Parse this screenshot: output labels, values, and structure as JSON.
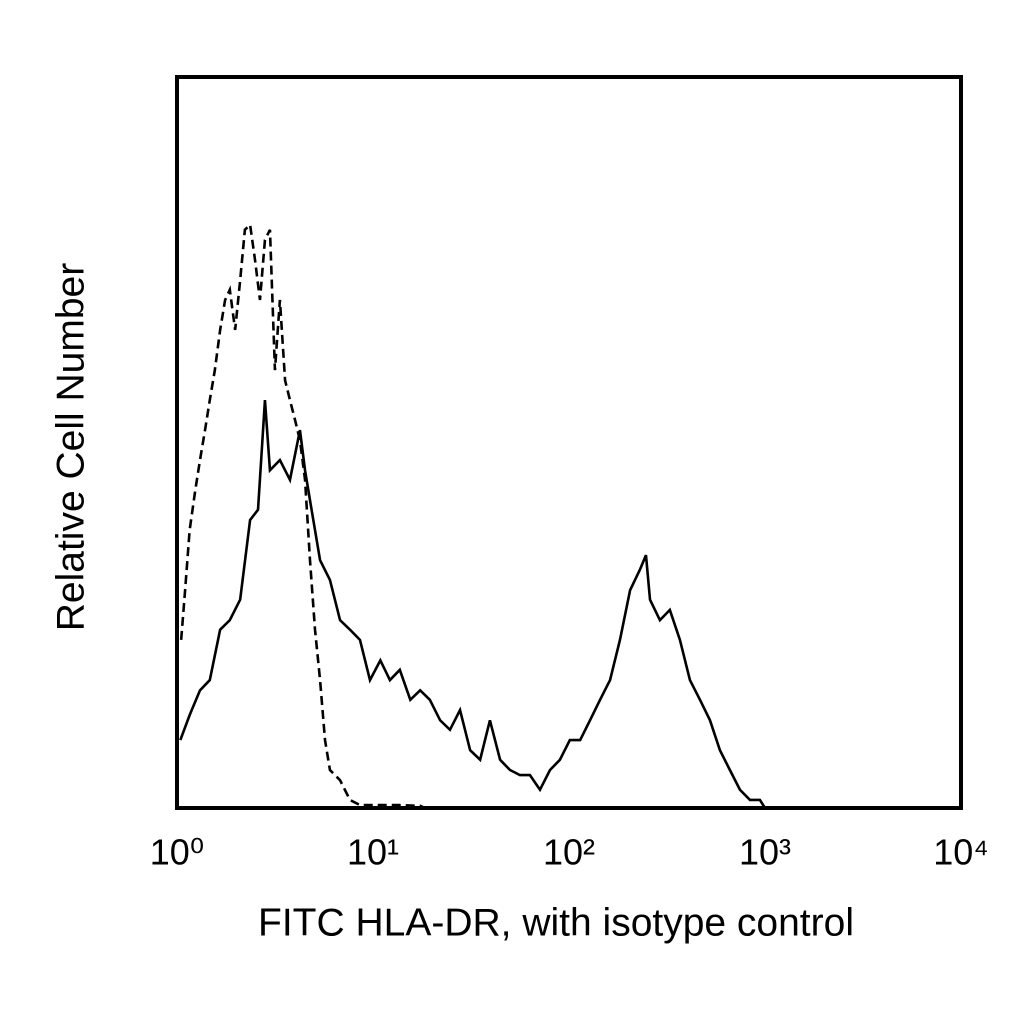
{
  "chart_data": {
    "type": "line",
    "xlabel": "FITC HLA-DR, with isotype control",
    "ylabel": "Relative Cell Number",
    "xscale": "log",
    "xlim": [
      1,
      10000
    ],
    "xticks": [
      {
        "value": 1,
        "label": "10⁰"
      },
      {
        "value": 10,
        "label": "10¹"
      },
      {
        "value": 100,
        "label": "10²"
      },
      {
        "value": 1000,
        "label": "10³"
      },
      {
        "value": 10000,
        "label": "10⁴"
      }
    ],
    "ylim": [
      0,
      100
    ],
    "grid": false,
    "series": [
      {
        "color": "#000000",
        "dash": false,
        "x": [
          1.04,
          1.16,
          1.31,
          1.47,
          1.66,
          1.86,
          2.1,
          2.36,
          2.59,
          2.81,
          2.98,
          3.35,
          3.77,
          4.24,
          4.5,
          4.77,
          5.37,
          6.03,
          6.79,
          7.63,
          8.58,
          9.65,
          10.9,
          12.2,
          13.7,
          15.5,
          17.4,
          19.5,
          22.0,
          24.7,
          27.8,
          31.3,
          35.2,
          39.5,
          44.5,
          50.0,
          56.2,
          63.2,
          71.1,
          80.0,
          89.9,
          101,
          114,
          128,
          144,
          162,
          182,
          205,
          230,
          247,
          259,
          291,
          327,
          368,
          414,
          466,
          524,
          589,
          662,
          745,
          838,
          942,
          1000
        ],
        "values": [
          9.3,
          12.7,
          16.1,
          17.5,
          24.4,
          25.7,
          28.5,
          39.4,
          40.8,
          55.8,
          46.2,
          47.6,
          44.9,
          51.7,
          46.2,
          42.1,
          33.9,
          31.2,
          25.7,
          24.4,
          23.0,
          17.5,
          20.2,
          17.5,
          18.9,
          14.8,
          16.1,
          14.8,
          12.0,
          10.7,
          13.4,
          7.9,
          6.6,
          12.0,
          6.6,
          5.2,
          4.5,
          4.5,
          2.5,
          5.2,
          6.6,
          9.3,
          9.3,
          12.0,
          14.8,
          17.5,
          23.0,
          29.8,
          32.6,
          34.6,
          28.5,
          25.7,
          27.1,
          23.0,
          17.5,
          14.8,
          12.0,
          7.9,
          5.2,
          2.5,
          1.1,
          1.1,
          0
        ]
      },
      {
        "color": "#000000",
        "dash": true,
        "x": [
          1.05,
          1.1,
          1.16,
          1.24,
          1.31,
          1.39,
          1.47,
          1.56,
          1.66,
          1.76,
          1.86,
          1.98,
          2.1,
          2.22,
          2.36,
          2.5,
          2.65,
          2.81,
          2.98,
          3.16,
          3.35,
          3.56,
          3.77,
          4.0,
          4.24,
          4.5,
          4.77,
          5.06,
          5.37,
          5.69,
          6.03,
          6.79,
          7.63,
          8.58,
          10.9,
          13.7,
          17.4,
          18.4
        ],
        "values": [
          23.0,
          29.8,
          38.0,
          43.5,
          47.6,
          51.7,
          55.8,
          59.9,
          65.4,
          69.5,
          70.9,
          65.4,
          72.2,
          79.1,
          79.8,
          75.0,
          69.5,
          77.7,
          79.1,
          59.9,
          69.5,
          58.5,
          55.8,
          53.1,
          50.3,
          44.9,
          33.9,
          24.4,
          17.5,
          9.3,
          5.2,
          3.8,
          1.1,
          0.4,
          0.4,
          0.4,
          0.3,
          0
        ]
      }
    ]
  }
}
